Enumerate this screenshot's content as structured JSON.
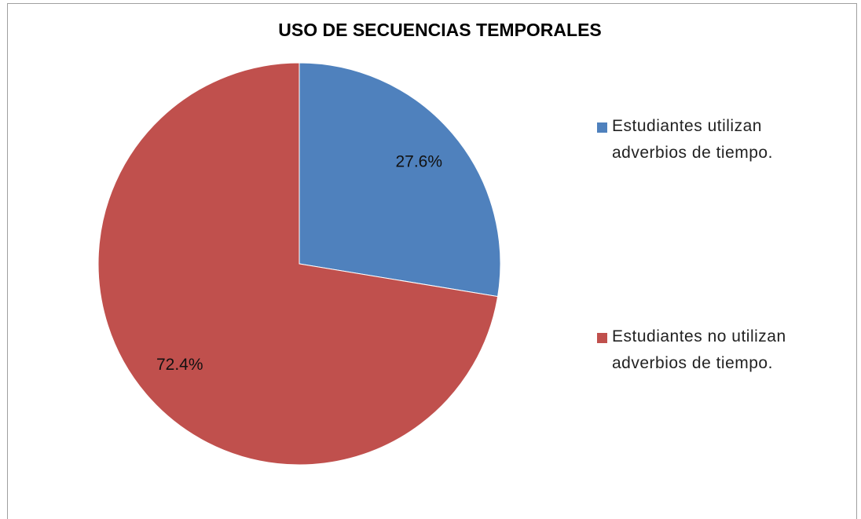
{
  "chart_data": {
    "type": "pie",
    "title": "USO DE SECUENCIAS TEMPORALES",
    "categories": [
      "Estudiantes utilizan adverbios de tiempo.",
      "Estudiantes no utilizan adverbios de tiempo."
    ],
    "values": [
      27.6,
      72.4
    ],
    "value_labels": [
      "27.6%",
      "72.4%"
    ],
    "colors": [
      "#4f81bd",
      "#c0504d"
    ],
    "legend": "right"
  }
}
